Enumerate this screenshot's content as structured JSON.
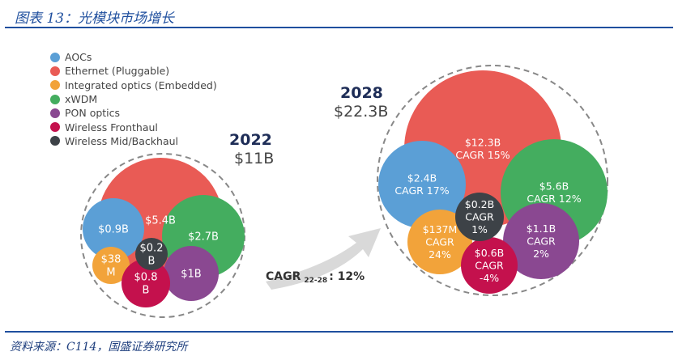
{
  "header": {
    "title": "图表 13：光模块市场增长"
  },
  "footer": {
    "source": "资料来源：C114，国盛证券研究所"
  },
  "chart_data": {
    "type": "bubble",
    "title": "光模块市场增长",
    "legend": [
      {
        "name": "AOCs",
        "color": "#5b9fd6"
      },
      {
        "name": "Ethernet (Pluggable)",
        "color": "#e95b55"
      },
      {
        "name": "Integrated optics (Embedded)",
        "color": "#f2a33a"
      },
      {
        "name": "xWDM",
        "color": "#44ad5f"
      },
      {
        "name": "PON optics",
        "color": "#8a4891"
      },
      {
        "name": "Wireless Fronthaul",
        "color": "#c4114d"
      },
      {
        "name": "Wireless Mid/Backhaul",
        "color": "#3d4247"
      }
    ],
    "groups": [
      {
        "year": "2022",
        "total": "$11B",
        "bubbles": [
          {
            "segment": "Ethernet (Pluggable)",
            "label": "$5.4B"
          },
          {
            "segment": "AOCs",
            "label": "$0.9B"
          },
          {
            "segment": "xWDM",
            "label": "$2.7B"
          },
          {
            "segment": "PON optics",
            "label": "$1B"
          },
          {
            "segment": "Integrated optics (Embedded)",
            "label": "$38 M"
          },
          {
            "segment": "Wireless Fronthaul",
            "label": "$0.8 B"
          },
          {
            "segment": "Wireless Mid/Backhaul",
            "label": "$0.2 B"
          }
        ]
      },
      {
        "year": "2028",
        "total": "$22.3B",
        "bubbles": [
          {
            "segment": "Ethernet (Pluggable)",
            "label": "$12.3B",
            "cagr": "CAGR 15%"
          },
          {
            "segment": "AOCs",
            "label": "$2.4B",
            "cagr": "CAGR 17%"
          },
          {
            "segment": "xWDM",
            "label": "$5.6B",
            "cagr": "CAGR 12%"
          },
          {
            "segment": "PON optics",
            "label": "$1.1B",
            "cagr": "CAGR 2%"
          },
          {
            "segment": "Integrated optics (Embedded)",
            "label": "$137M",
            "cagr": "CAGR 24%"
          },
          {
            "segment": "Wireless Fronthaul",
            "label": "$0.6B",
            "cagr": "CAGR -4%"
          },
          {
            "segment": "Wireless Mid/Backhaul",
            "label": "$0.2B",
            "cagr": "CAGR 1%"
          }
        ]
      }
    ],
    "annotation": {
      "prefix": "CAGR",
      "sub": "22-28",
      "value": ": 12%"
    }
  }
}
